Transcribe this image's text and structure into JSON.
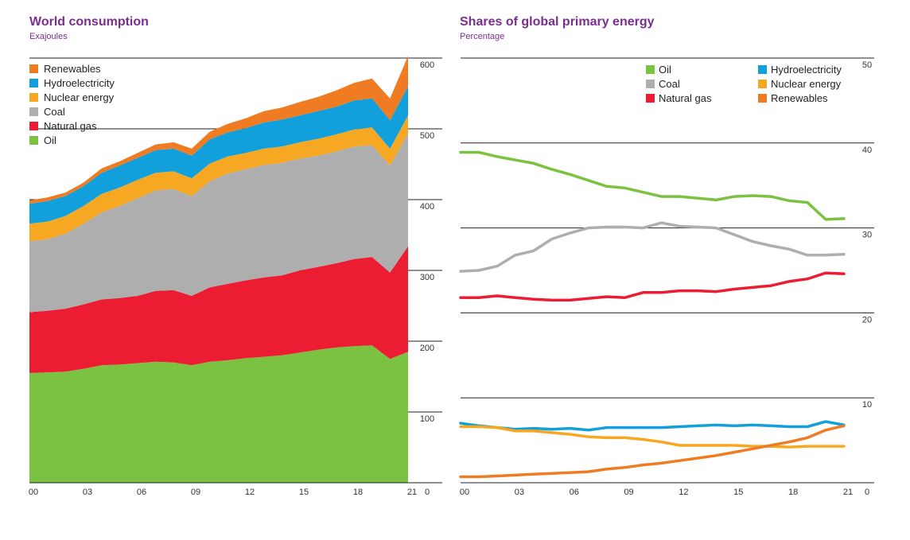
{
  "chart_data": [
    {
      "type": "area",
      "title": "World consumption",
      "subtitle": "Exajoules",
      "x": [
        "2000",
        "2001",
        "2002",
        "2003",
        "2004",
        "2005",
        "2006",
        "2007",
        "2008",
        "2009",
        "2010",
        "2011",
        "2012",
        "2013",
        "2014",
        "2015",
        "2016",
        "2017",
        "2018",
        "2019",
        "2020",
        "2021"
      ],
      "x_tick_labels": [
        "00",
        "03",
        "06",
        "09",
        "12",
        "15",
        "18",
        "21"
      ],
      "x_tick_positions": [
        "2000",
        "2003",
        "2006",
        "2009",
        "2012",
        "2015",
        "2018",
        "2021"
      ],
      "ylim": [
        0,
        600
      ],
      "y_ticks": [
        0,
        100,
        200,
        300,
        400,
        500,
        600
      ],
      "stacked": true,
      "legend_placement": "top-left",
      "series": [
        {
          "name": "Oil",
          "color": "#7cc242",
          "values": [
            155,
            156,
            157,
            161,
            166,
            167,
            169,
            171,
            170,
            166,
            171,
            173,
            176,
            178,
            180,
            184,
            188,
            191,
            193,
            194,
            175,
            185
          ]
        },
        {
          "name": "Natural gas",
          "color": "#ec1c32",
          "values": [
            86,
            87,
            89,
            91,
            93,
            94,
            95,
            100,
            102,
            98,
            105,
            108,
            110,
            112,
            113,
            116,
            117,
            119,
            123,
            125,
            122,
            149
          ]
        },
        {
          "name": "Coal",
          "color": "#aeaeae",
          "values": [
            100,
            101,
            106,
            114,
            123,
            130,
            138,
            142,
            143,
            141,
            150,
            156,
            157,
            159,
            159,
            158,
            157,
            158,
            159,
            158,
            151,
            160
          ]
        },
        {
          "name": "Nuclear energy",
          "color": "#f7a823",
          "values": [
            25,
            25,
            25,
            25,
            26,
            26,
            26,
            25,
            25,
            25,
            25,
            24,
            23,
            23,
            23,
            23,
            24,
            24,
            24,
            25,
            24,
            25
          ]
        },
        {
          "name": "Hydroelectricity",
          "color": "#12a0dd",
          "values": [
            28,
            29,
            28,
            28,
            30,
            31,
            31,
            32,
            32,
            32,
            34,
            34,
            35,
            37,
            38,
            38,
            39,
            39,
            41,
            41,
            40,
            41
          ]
        },
        {
          "name": "Renewables",
          "color": "#ef7c22",
          "values": [
            5,
            5,
            5,
            5,
            6,
            6,
            7,
            8,
            9,
            10,
            11,
            12,
            14,
            16,
            17,
            19,
            20,
            23,
            25,
            28,
            31,
            43
          ]
        }
      ]
    },
    {
      "type": "line",
      "title": "Shares of global primary energy",
      "subtitle": "Percentage",
      "x": [
        "2000",
        "2001",
        "2002",
        "2003",
        "2004",
        "2005",
        "2006",
        "2007",
        "2008",
        "2009",
        "2010",
        "2011",
        "2012",
        "2013",
        "2014",
        "2015",
        "2016",
        "2017",
        "2018",
        "2019",
        "2020",
        "2021"
      ],
      "x_tick_labels": [
        "00",
        "03",
        "06",
        "09",
        "12",
        "15",
        "18",
        "21"
      ],
      "x_tick_positions": [
        "2000",
        "2003",
        "2006",
        "2009",
        "2012",
        "2015",
        "2018",
        "2021"
      ],
      "ylim": [
        0,
        50
      ],
      "y_ticks": [
        0,
        10,
        20,
        30,
        40,
        50
      ],
      "legend_placement": "top-right",
      "series": [
        {
          "name": "Oil",
          "color": "#7cc242",
          "values": [
            38.9,
            38.9,
            38.4,
            38.0,
            37.6,
            36.9,
            36.3,
            35.6,
            34.9,
            34.7,
            34.2,
            33.7,
            33.7,
            33.5,
            33.3,
            33.7,
            33.8,
            33.7,
            33.2,
            33.0,
            31.0,
            31.1
          ]
        },
        {
          "name": "Coal",
          "color": "#aeaeae",
          "values": [
            24.9,
            25.0,
            25.5,
            26.8,
            27.3,
            28.7,
            29.4,
            30.0,
            30.1,
            30.1,
            30.0,
            30.6,
            30.2,
            30.1,
            30.0,
            29.2,
            28.4,
            27.9,
            27.5,
            26.8,
            26.8,
            26.9
          ]
        },
        {
          "name": "Natural gas",
          "color": "#ec1c32",
          "values": [
            21.8,
            21.8,
            22.0,
            21.8,
            21.6,
            21.5,
            21.5,
            21.7,
            21.9,
            21.8,
            22.4,
            22.4,
            22.6,
            22.6,
            22.5,
            22.8,
            23.0,
            23.2,
            23.7,
            24.0,
            24.7,
            24.6
          ]
        },
        {
          "name": "Hydroelectricity",
          "color": "#12a0dd",
          "values": [
            7.0,
            6.7,
            6.5,
            6.3,
            6.4,
            6.3,
            6.4,
            6.2,
            6.5,
            6.5,
            6.5,
            6.5,
            6.6,
            6.7,
            6.8,
            6.7,
            6.8,
            6.7,
            6.6,
            6.6,
            7.2,
            6.8
          ]
        },
        {
          "name": "Nuclear energy",
          "color": "#f7a823",
          "values": [
            6.6,
            6.6,
            6.5,
            6.1,
            6.1,
            5.9,
            5.7,
            5.4,
            5.3,
            5.3,
            5.1,
            4.8,
            4.4,
            4.4,
            4.4,
            4.4,
            4.3,
            4.3,
            4.2,
            4.3,
            4.3,
            4.3
          ]
        },
        {
          "name": "Renewables",
          "color": "#ef7c22",
          "values": [
            0.7,
            0.7,
            0.8,
            0.9,
            1.0,
            1.1,
            1.2,
            1.3,
            1.6,
            1.8,
            2.1,
            2.3,
            2.6,
            2.9,
            3.2,
            3.6,
            4.0,
            4.4,
            4.8,
            5.3,
            6.2,
            6.7
          ]
        }
      ]
    }
  ]
}
